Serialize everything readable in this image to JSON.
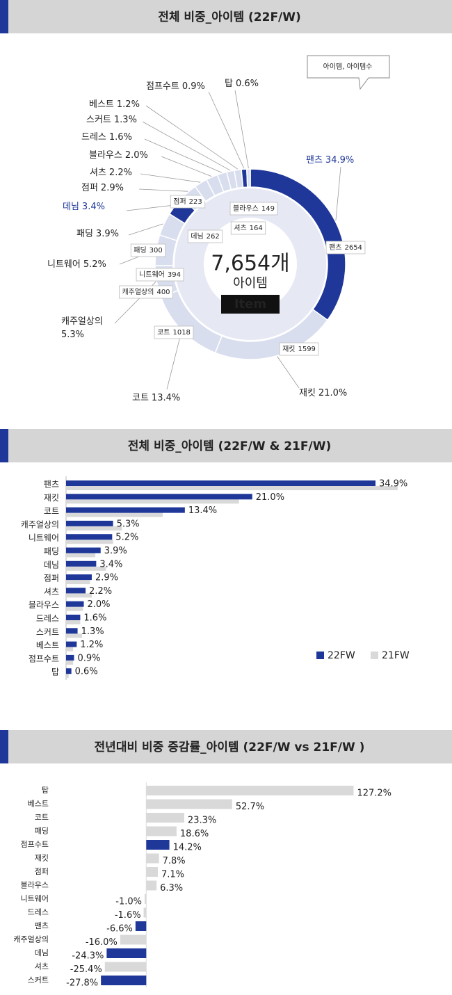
{
  "chart_data": [
    {
      "type": "pie",
      "title": "전체 비중_아이템 (22F/W)",
      "callout": "아이템, 아이템수",
      "center_total": "7,654개",
      "center_label": "아이템",
      "center_badge": "Item",
      "categories": [
        "팬츠",
        "재킷",
        "코트",
        "캐주얼상의",
        "니트웨어",
        "패딩",
        "데님",
        "점퍼",
        "셔츠",
        "블라우스",
        "드레스",
        "스커트",
        "베스트",
        "점프수트",
        "탑"
      ],
      "values": [
        34.9,
        21.0,
        13.4,
        5.3,
        5.2,
        3.9,
        3.4,
        2.9,
        2.2,
        2.0,
        1.6,
        1.3,
        1.2,
        0.9,
        0.6
      ],
      "value_labels": [
        "34.9%",
        "21.0%",
        "13.4%",
        "5.3%",
        "5.2%",
        "3.9%",
        "3.4%",
        "2.9%",
        "2.2%",
        "2.0%",
        "1.6%",
        "1.3%",
        "1.2%",
        "0.9%",
        "0.6%"
      ],
      "counts": [
        2654,
        1599,
        1018,
        400,
        394,
        300,
        262,
        223,
        164,
        149,
        null,
        null,
        null,
        null,
        null
      ],
      "colors": [
        "#1e3799",
        "#d9deef",
        "#d9deef",
        "#d9deef",
        "#d9deef",
        "#d9deef",
        "#1e3799",
        "#d9deef",
        "#d9deef",
        "#d9deef",
        "#d9deef",
        "#d9deef",
        "#d9deef",
        "#1e3799",
        "#d9deef"
      ],
      "label_colors": [
        "#1e3799",
        "#222222",
        "#222222",
        "#222222",
        "#222222",
        "#222222",
        "#1e3799",
        "#222222",
        "#222222",
        "#222222",
        "#222222",
        "#222222",
        "#222222",
        "#222222",
        "#222222"
      ]
    },
    {
      "type": "bar",
      "orientation": "horizontal",
      "title": "전체 비중_아이템 (22F/W & 21F/W)",
      "categories": [
        "팬츠",
        "재킷",
        "코트",
        "캐주얼상의",
        "니트웨어",
        "패딩",
        "데님",
        "점퍼",
        "셔츠",
        "블라우스",
        "드레스",
        "스커트",
        "베스트",
        "점프수트",
        "탑"
      ],
      "series": [
        {
          "name": "22FW",
          "color": "#1e3799",
          "values": [
            34.9,
            21.0,
            13.4,
            5.3,
            5.2,
            3.9,
            3.4,
            2.9,
            2.2,
            2.0,
            1.6,
            1.3,
            1.2,
            0.9,
            0.6
          ],
          "value_labels": [
            "34.9%",
            "21.0%",
            "13.4%",
            "5.3%",
            "5.2%",
            "3.9%",
            "3.4%",
            "2.9%",
            "2.2%",
            "2.0%",
            "1.6%",
            "1.3%",
            "1.2%",
            "0.9%",
            "0.6%"
          ]
        },
        {
          "name": "21FW",
          "color": "#d9d9d9",
          "values": [
            37.4,
            19.5,
            10.9,
            6.3,
            5.3,
            3.3,
            4.5,
            2.7,
            2.9,
            1.9,
            1.6,
            1.8,
            0.8,
            0.8,
            0.3
          ]
        }
      ],
      "xlim": [
        0,
        40
      ],
      "legend": "bottom-right"
    },
    {
      "type": "bar",
      "orientation": "horizontal",
      "title": "전년대비 비중 증감률_아이템 (22F/W vs 21F/W )",
      "categories": [
        "탑",
        "베스트",
        "코트",
        "패딩",
        "점프수트",
        "재킷",
        "점퍼",
        "블라우스",
        "니트웨어",
        "드레스",
        "팬츠",
        "캐주얼상의",
        "데님",
        "셔츠",
        "스커트"
      ],
      "values": [
        127.2,
        52.7,
        23.3,
        18.6,
        14.2,
        7.8,
        7.1,
        6.3,
        -1.0,
        -1.6,
        -6.6,
        -16.0,
        -24.3,
        -25.4,
        -27.8
      ],
      "value_labels": [
        "127.2%",
        "52.7%",
        "23.3%",
        "18.6%",
        "14.2%",
        "7.8%",
        "7.1%",
        "6.3%",
        "-1.0%",
        "-1.6%",
        "-6.6%",
        "-16.0%",
        "-24.3%",
        "-25.4%",
        "-27.8%"
      ],
      "colors": [
        "#d9d9d9",
        "#d9d9d9",
        "#d9d9d9",
        "#d9d9d9",
        "#1e3799",
        "#d9d9d9",
        "#d9d9d9",
        "#d9d9d9",
        "#d9d9d9",
        "#d9d9d9",
        "#1e3799",
        "#d9d9d9",
        "#1e3799",
        "#d9d9d9",
        "#1e3799"
      ],
      "xlim": [
        -30,
        130
      ]
    }
  ]
}
